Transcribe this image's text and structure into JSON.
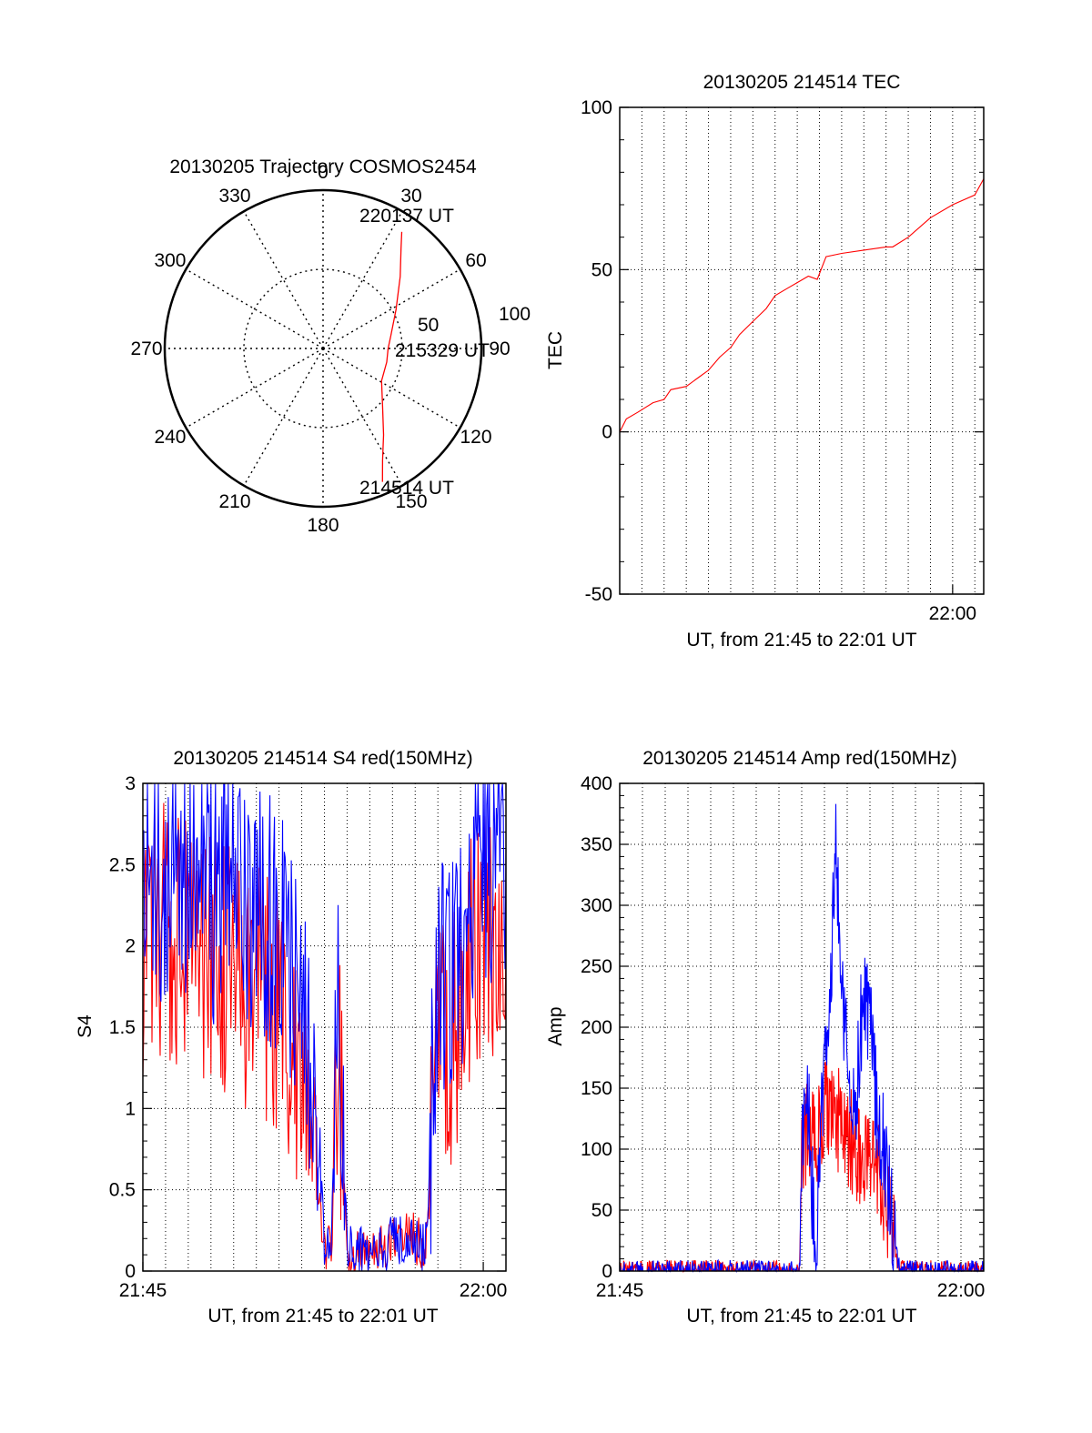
{
  "colors": {
    "red": "#ff0000",
    "blue": "#0000ff",
    "axis": "#000000",
    "grid": "#000000"
  },
  "chart_data": [
    {
      "type": "polar",
      "title": "20130205 Trajectory COSMOS2454",
      "azimuth_labels": [
        "0",
        "30",
        "60",
        "90",
        "120",
        "150",
        "180",
        "210",
        "240",
        "270",
        "300",
        "330"
      ],
      "radius_labels": [
        "50",
        "100"
      ],
      "rlim": [
        0,
        100
      ],
      "grid": true,
      "annotations": [
        "220137 UT",
        "215329 UT",
        "214514 UT"
      ],
      "series": [
        {
          "color": "red",
          "azimuth_deg": [
            156,
            152,
            145,
            134,
            119,
            102,
            90,
            80,
            62,
            47,
            38,
            34
          ],
          "elevation_deg": [
            7,
            18,
            30,
            43,
            52,
            53,
            53,
            51,
            43,
            30,
            18,
            10
          ]
        }
      ]
    },
    {
      "type": "line",
      "title": "20130205 214514 TEC",
      "xlabel": "UT, from 21:45 to 22:01 UT",
      "ylabel": "TEC",
      "xlim": [
        0,
        16.4
      ],
      "ylim": [
        -50,
        100
      ],
      "yticks": [
        "-50",
        "0",
        "50",
        "100"
      ],
      "xticks": [
        {
          "x": 15,
          "label": "22:00"
        }
      ],
      "grid": true,
      "series": [
        {
          "color": "red",
          "x": [
            0,
            0.3,
            0.8,
            1.5,
            2,
            2.3,
            3,
            3.6,
            4,
            4.5,
            5,
            5.4,
            6,
            6.6,
            7,
            7.5,
            8,
            8.5,
            8.9,
            9.3,
            10,
            11,
            12,
            12.3,
            13,
            14,
            15,
            16,
            16.4
          ],
          "y": [
            0,
            4,
            6,
            9,
            10,
            13,
            14,
            17,
            19,
            23,
            26,
            30,
            34,
            38,
            42,
            44,
            46,
            48,
            47,
            54,
            55,
            56,
            57,
            57,
            60,
            66,
            70,
            73,
            78
          ]
        }
      ]
    },
    {
      "type": "line",
      "title": "20130205 214514 S4 red(150MHz)",
      "xlabel": "UT, from 21:45 to 22:01 UT",
      "ylabel": "S4",
      "xlim": [
        0,
        16
      ],
      "ylim": [
        0,
        3
      ],
      "yticks": [
        "0",
        "0.5",
        "1",
        "1.5",
        "2",
        "2.5",
        "3"
      ],
      "xticks": [
        {
          "x": 0,
          "label": "21:45"
        },
        {
          "x": 15,
          "label": "22:00"
        }
      ],
      "grid": true,
      "series": [
        {
          "color": "red",
          "x": [
            0,
            1,
            2,
            3,
            4,
            5,
            6,
            6.5,
            7,
            7.5,
            8,
            8.3,
            8.6,
            9,
            9.5,
            10,
            10.5,
            11,
            11.5,
            12,
            12.5,
            13,
            13.5,
            14,
            14.5,
            15,
            15.5,
            16
          ],
          "y": [
            2.0,
            2.1,
            2.0,
            1.9,
            1.8,
            1.7,
            1.6,
            1.3,
            1.1,
            0.9,
            0.15,
            0.12,
            1.5,
            0.12,
            0.1,
            0.12,
            0.15,
            0.2,
            0.25,
            0.2,
            0.15,
            1.5,
            1.3,
            1.6,
            1.9,
            2.0,
            2.1,
            2.0
          ]
        },
        {
          "color": "blue",
          "x": [
            0,
            1,
            2,
            3,
            4,
            5,
            6,
            6.5,
            7,
            7.5,
            8,
            8.3,
            8.6,
            9,
            9.5,
            10,
            10.5,
            11,
            11.5,
            12,
            12.5,
            13,
            13.5,
            14,
            14.5,
            15,
            15.5,
            16
          ],
          "y": [
            2.5,
            2.4,
            2.4,
            2.3,
            2.3,
            2.2,
            2.1,
            1.9,
            1.6,
            1.3,
            0.2,
            0.15,
            1.7,
            0.15,
            0.12,
            0.12,
            0.14,
            0.18,
            0.2,
            0.18,
            0.15,
            1.9,
            1.8,
            2.0,
            2.3,
            2.5,
            2.6,
            2.6
          ]
        }
      ]
    },
    {
      "type": "line",
      "title": "20130205 214514 Amp red(150MHz)",
      "xlabel": "UT, from 21:45 to 22:01 UT",
      "ylabel": "Amp",
      "xlim": [
        0,
        16
      ],
      "ylim": [
        0,
        400
      ],
      "yticks": [
        "0",
        "50",
        "100",
        "150",
        "200",
        "250",
        "300",
        "350",
        "400"
      ],
      "xticks": [
        {
          "x": 0,
          "label": "21:45"
        },
        {
          "x": 15,
          "label": "22:00"
        }
      ],
      "grid": true,
      "series": [
        {
          "color": "red",
          "x": [
            0,
            7,
            7.9,
            8.0,
            8.3,
            8.6,
            8.9,
            9.2,
            9.5,
            9.8,
            10.1,
            10.4,
            10.7,
            11.0,
            11.3,
            11.6,
            12.0,
            12.3,
            13,
            16
          ],
          "y": [
            0,
            0,
            0,
            100,
            120,
            110,
            130,
            140,
            120,
            125,
            110,
            100,
            90,
            95,
            80,
            70,
            30,
            0,
            0,
            0
          ]
        },
        {
          "color": "blue",
          "x": [
            0,
            7,
            7.9,
            8.0,
            8.3,
            8.6,
            8.9,
            9.2,
            9.5,
            9.8,
            10.1,
            10.4,
            10.7,
            11.0,
            11.3,
            11.6,
            12.0,
            12.3,
            13,
            16
          ],
          "y": [
            0,
            0,
            0,
            110,
            130,
            10,
            140,
            200,
            350,
            230,
            150,
            140,
            230,
            200,
            130,
            100,
            40,
            0,
            0,
            0
          ]
        }
      ]
    }
  ]
}
